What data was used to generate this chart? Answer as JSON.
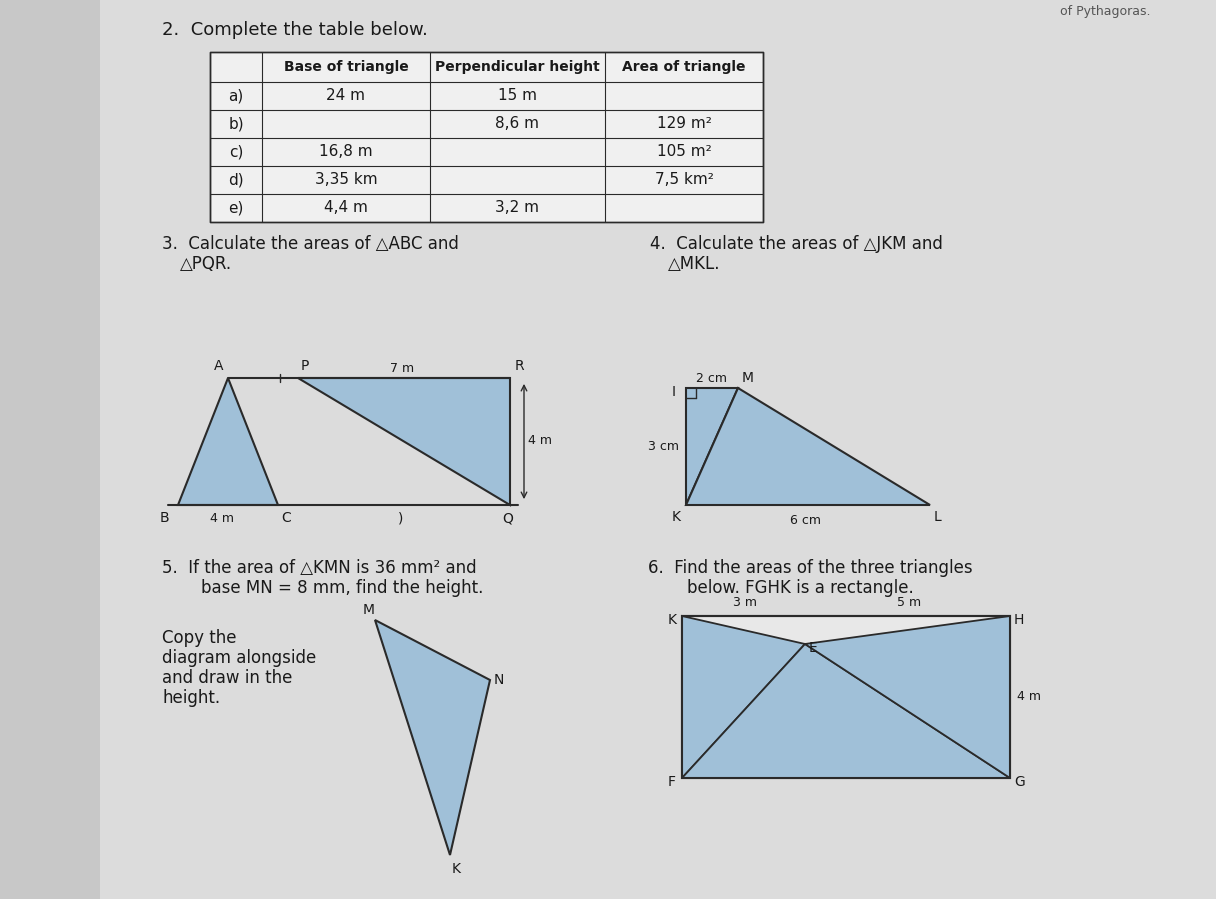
{
  "bg_color": "#c8c8c8",
  "page_bg": "#e8e8e8",
  "light_blue": "#a0c0d8",
  "outline_color": "#2a2a2a",
  "text_color": "#1a1a1a",
  "white_fill": "#f0f0f0",
  "title_top_right": "of Pythagoras.",
  "table_headers": [
    "",
    "Base of triangle",
    "Perpendicular height",
    "Area of triangle"
  ],
  "table_rows": [
    [
      "a)",
      "24 m",
      "15 m",
      ""
    ],
    [
      "b)",
      "",
      "8,6 m",
      "129 m²"
    ],
    [
      "c)",
      "16,8 m",
      "",
      "105 m²"
    ],
    [
      "d)",
      "3,35 km",
      "",
      "7,5 km²"
    ],
    [
      "e)",
      "4,4 m",
      "3,2 m",
      ""
    ]
  ]
}
